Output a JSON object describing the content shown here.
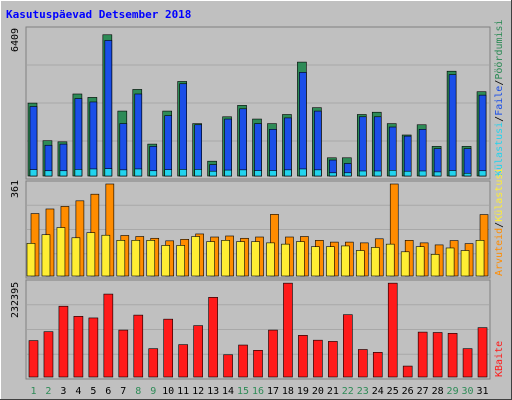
{
  "title": "Kasutuspäevad Detsember 2018",
  "colors": {
    "background": "#c0c0c0",
    "title": "#0000ff",
    "pages": "#2e8b57",
    "files": "#1a4ee8",
    "hits": "#22d3ee",
    "visits": "#ff8c00",
    "sites": "#ffee33",
    "kbytes": "#ff1a1a"
  },
  "legend_top": {
    "pages": "Pöördumisi",
    "files": "Faile",
    "hits": "Külastusi",
    "sep": "/"
  },
  "legend_mid": {
    "visits": "Arvuteid",
    "sites": "Külastusi",
    "sep": "/"
  },
  "legend_bot": {
    "kbytes": "KBaite"
  },
  "chart_data": [
    {
      "type": "bar",
      "panel": "hits-files-pages",
      "max_label": "6409",
      "ylim": [
        0,
        6409
      ],
      "categories": [
        "1",
        "2",
        "3",
        "4",
        "5",
        "6",
        "7",
        "8",
        "9",
        "10",
        "11",
        "12",
        "13",
        "14",
        "15",
        "16",
        "17",
        "18",
        "19",
        "20",
        "21",
        "22",
        "23",
        "24",
        "25",
        "26",
        "27",
        "28",
        "29",
        "30",
        "31"
      ],
      "weekend_days": [
        "1",
        "2",
        "8",
        "9",
        "15",
        "16",
        "22",
        "23",
        "29",
        "30"
      ],
      "series": [
        {
          "name": "Pöördumisi",
          "values": [
            3200,
            1550,
            1500,
            3600,
            3450,
            6200,
            2850,
            3800,
            1400,
            2850,
            4150,
            2300,
            650,
            2600,
            3100,
            2500,
            2300,
            2700,
            5000,
            3000,
            800,
            800,
            2700,
            2800,
            2300,
            1800,
            2250,
            1300,
            4600,
            1300,
            3700
          ]
        },
        {
          "name": "Faile",
          "values": [
            3050,
            1350,
            1400,
            3400,
            3250,
            5950,
            2300,
            3600,
            1300,
            2650,
            4050,
            2250,
            500,
            2500,
            2950,
            2300,
            2050,
            2550,
            4550,
            2850,
            700,
            550,
            2600,
            2600,
            2150,
            1750,
            2050,
            1200,
            4450,
            1200,
            3550
          ]
        },
        {
          "name": "Külastusi",
          "values": [
            280,
            230,
            230,
            290,
            310,
            320,
            270,
            310,
            230,
            280,
            290,
            290,
            210,
            260,
            270,
            240,
            240,
            270,
            310,
            270,
            140,
            140,
            220,
            220,
            250,
            210,
            220,
            180,
            240,
            120,
            230
          ]
        }
      ]
    },
    {
      "type": "bar",
      "panel": "visits-sites",
      "max_label": "361",
      "ylim": [
        0,
        361
      ],
      "categories": [
        "1",
        "2",
        "3",
        "4",
        "5",
        "6",
        "7",
        "8",
        "9",
        "10",
        "11",
        "12",
        "13",
        "14",
        "15",
        "16",
        "17",
        "18",
        "19",
        "20",
        "21",
        "22",
        "23",
        "24",
        "25",
        "26",
        "27",
        "28",
        "29",
        "30",
        "31"
      ],
      "series": [
        {
          "name": "Arvuteid",
          "values": [
            245,
            263,
            273,
            295,
            321,
            361,
            159,
            155,
            148,
            138,
            144,
            165,
            153,
            157,
            148,
            153,
            242,
            153,
            155,
            140,
            133,
            133,
            130,
            146,
            361,
            140,
            130,
            122,
            139,
            127,
            241
          ]
        },
        {
          "name": "Külastusi",
          "values": [
            128,
            162,
            190,
            150,
            170,
            160,
            140,
            140,
            140,
            120,
            120,
            155,
            135,
            140,
            135,
            135,
            130,
            125,
            135,
            115,
            115,
            118,
            100,
            112,
            125,
            95,
            115,
            85,
            110,
            100,
            140
          ]
        }
      ]
    },
    {
      "type": "bar",
      "panel": "kbytes",
      "max_label": "232395",
      "ylim": [
        0,
        232395
      ],
      "categories": [
        "1",
        "2",
        "3",
        "4",
        "5",
        "6",
        "7",
        "8",
        "9",
        "10",
        "11",
        "12",
        "13",
        "14",
        "15",
        "16",
        "17",
        "18",
        "19",
        "20",
        "21",
        "22",
        "23",
        "24",
        "25",
        "26",
        "27",
        "28",
        "29",
        "30",
        "31"
      ],
      "series": [
        {
          "name": "KBaite",
          "values": [
            90000,
            112000,
            175000,
            150000,
            146000,
            205000,
            116000,
            153000,
            70000,
            143000,
            80000,
            127000,
            197000,
            55000,
            79000,
            66000,
            116000,
            232000,
            103000,
            91000,
            88000,
            154000,
            68000,
            61000,
            232000,
            27000,
            111000,
            110000,
            108000,
            70000,
            122000
          ]
        }
      ]
    }
  ]
}
